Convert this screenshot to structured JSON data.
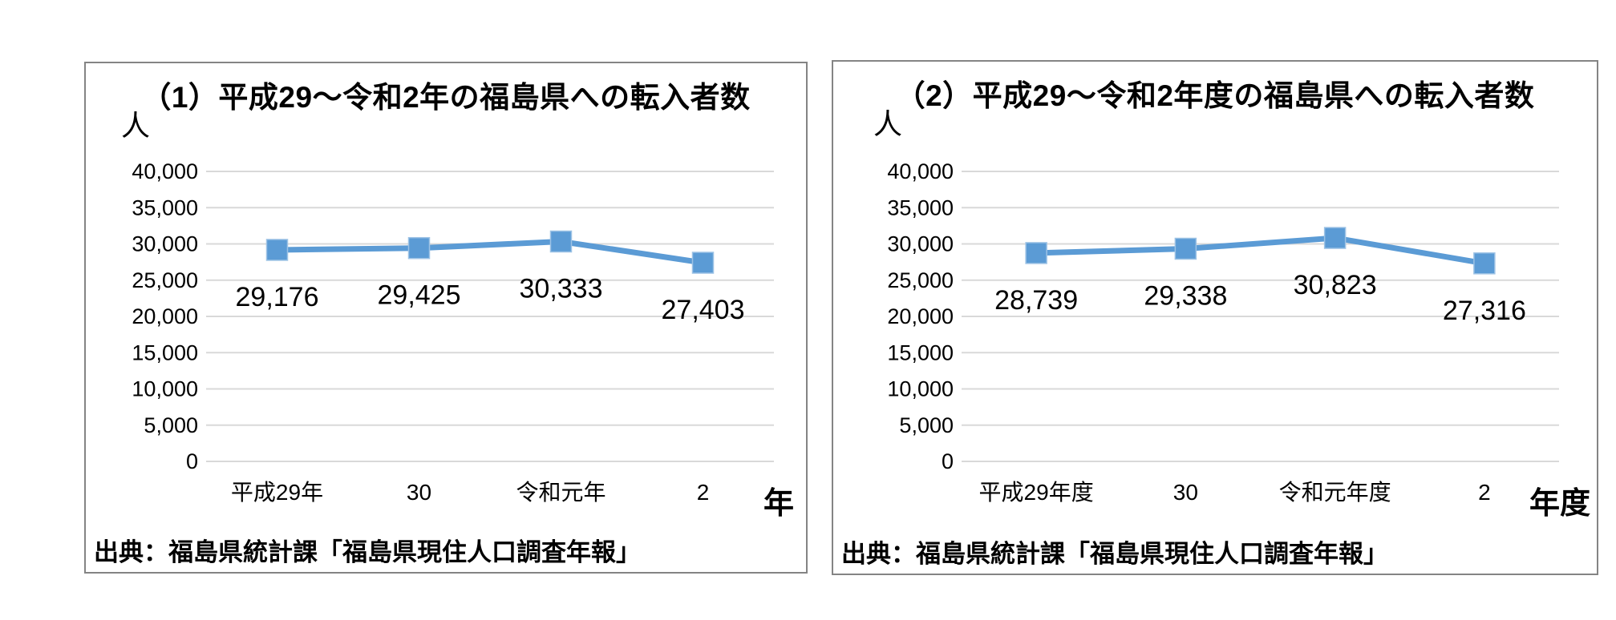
{
  "figure": {
    "background": "#ffffff",
    "box_border_color": "#848484"
  },
  "colors": {
    "accent": "#5B9BD5",
    "marker_edge": "#9CC2E5",
    "gridline": "#D9D9D9",
    "text": "#000000"
  },
  "chart_data": [
    {
      "type": "line",
      "title": "（1）平成29～令和2年の福島県への転入者数",
      "unit_y": "人",
      "unit_x": "年",
      "source": "出典：福島県統計課「福島県現住人口調査年報」",
      "categories": [
        "平成29年",
        "30",
        "令和元年",
        "2"
      ],
      "values": [
        29176,
        29425,
        30333,
        27403
      ],
      "data_labels": [
        "29,176",
        "29,425",
        "30,333",
        "27,403"
      ],
      "ylim": [
        0,
        40000
      ],
      "ytick_step": 5000,
      "ytick_labels": [
        "40,000",
        "35,000",
        "30,000",
        "25,000",
        "20,000",
        "15,000",
        "10,000",
        "5,000",
        "0"
      ],
      "grid": true,
      "legend": "none",
      "marker": "square"
    },
    {
      "type": "line",
      "title": "（2）平成29～令和2年度の福島県への転入者数",
      "unit_y": "人",
      "unit_x": "年度",
      "source": "出典：福島県統計課「福島県現住人口調査年報」",
      "categories": [
        "平成29年度",
        "30",
        "令和元年度",
        "2"
      ],
      "values": [
        28739,
        29338,
        30823,
        27316
      ],
      "data_labels": [
        "28,739",
        "29,338",
        "30,823",
        "27,316"
      ],
      "ylim": [
        0,
        40000
      ],
      "ytick_step": 5000,
      "ytick_labels": [
        "40,000",
        "35,000",
        "30,000",
        "25,000",
        "20,000",
        "15,000",
        "10,000",
        "5,000",
        "0"
      ],
      "grid": true,
      "legend": "none",
      "marker": "square"
    }
  ]
}
